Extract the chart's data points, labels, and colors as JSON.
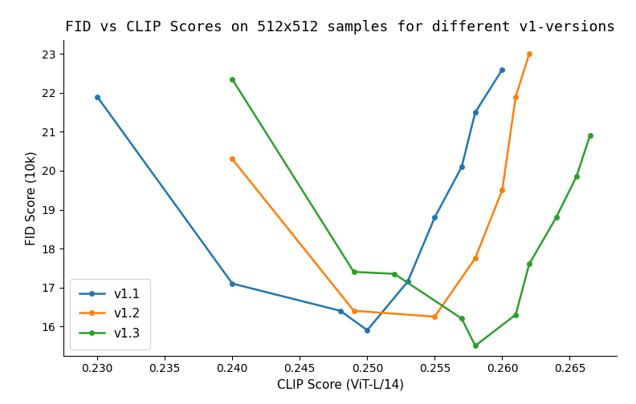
{
  "title": "FID vs CLIP Scores on 512x512 samples for different v1-versions",
  "xlabel": "CLIP Score (ViT-L/14)",
  "ylabel": "FID Score (10k)",
  "series": [
    {
      "label": "v1.1",
      "color": "#1f77b4",
      "x": [
        0.23,
        0.24,
        0.248,
        0.25,
        0.253,
        0.255,
        0.257,
        0.258,
        0.26
      ],
      "y": [
        21.9,
        17.1,
        16.4,
        15.9,
        17.15,
        18.8,
        20.1,
        21.5,
        22.6
      ]
    },
    {
      "label": "v1.2",
      "color": "#ff7f0e",
      "x": [
        0.24,
        0.249,
        0.255,
        0.258,
        0.26,
        0.261,
        0.262
      ],
      "y": [
        20.3,
        16.4,
        16.25,
        17.75,
        19.5,
        21.9,
        23.0
      ]
    },
    {
      "label": "v1.3",
      "color": "#2ca02c",
      "x": [
        0.24,
        0.249,
        0.252,
        0.257,
        0.258,
        0.261,
        0.262,
        0.264,
        0.2655,
        0.2665
      ],
      "y": [
        22.35,
        17.4,
        17.35,
        16.2,
        15.5,
        16.3,
        17.6,
        18.8,
        19.85,
        20.9
      ]
    }
  ],
  "xlim": [
    0.2275,
    0.2685
  ],
  "ylim": [
    15.25,
    23.35
  ],
  "xticks": [
    0.23,
    0.235,
    0.24,
    0.245,
    0.25,
    0.255,
    0.26,
    0.265
  ],
  "yticks": [
    16,
    17,
    18,
    19,
    20,
    21,
    22,
    23
  ],
  "title_fontsize": 13,
  "label_fontsize": 11,
  "tick_fontsize": 10,
  "legend_fontsize": 11,
  "marker": "o",
  "markersize": 4,
  "linewidth": 1.8,
  "background_color": "#ffffff",
  "figsize": [
    7.92,
    5.04
  ],
  "dpi": 100
}
